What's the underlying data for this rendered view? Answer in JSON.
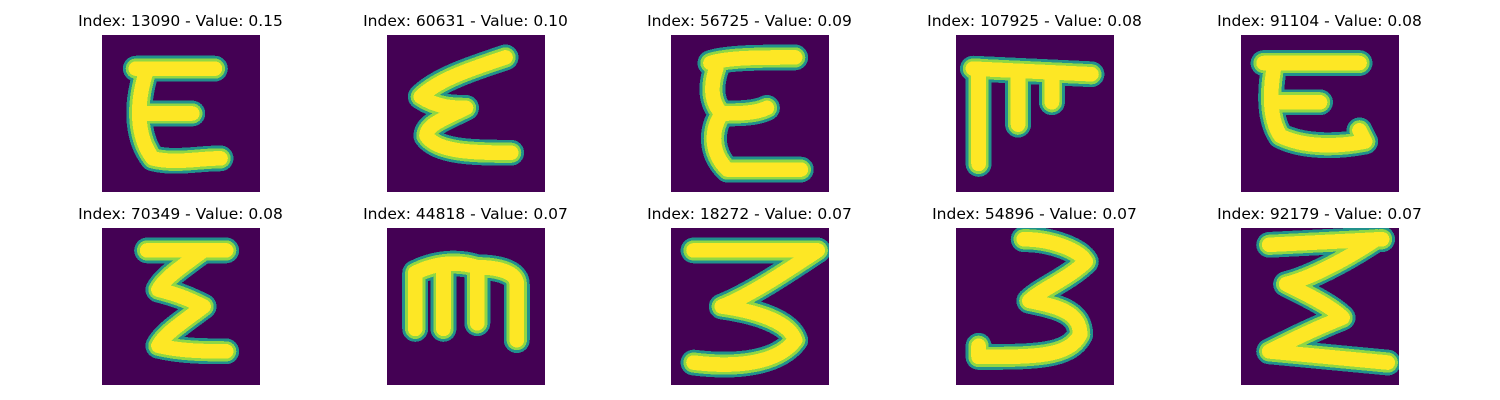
{
  "figure": {
    "colors": {
      "background": "#440154",
      "stroke_edge": "#21918c",
      "stroke_mid": "#8fd744",
      "stroke_core": "#fde725"
    },
    "panels": [
      {
        "title": "Index: 13090 - Value: 0.15",
        "index": 13090,
        "value": 0.15,
        "glyph": "E-like letter"
      },
      {
        "title": "Index: 60631 - Value: 0.10",
        "index": 60631,
        "value": 0.1,
        "glyph": "cursive E"
      },
      {
        "title": "Index: 56725 - Value: 0.09",
        "index": 56725,
        "value": 0.09,
        "glyph": "cursive E"
      },
      {
        "title": "Index: 107925 - Value: 0.08",
        "index": 107925,
        "value": 0.08,
        "glyph": "rotated E"
      },
      {
        "title": "Index: 91104 - Value: 0.08",
        "index": 91104,
        "value": 0.08,
        "glyph": "rounded E"
      },
      {
        "title": "Index: 70349 - Value: 0.08",
        "index": 70349,
        "value": 0.08,
        "glyph": "zigzag E"
      },
      {
        "title": "Index: 44818 - Value: 0.07",
        "index": 44818,
        "value": 0.07,
        "glyph": "sideways E"
      },
      {
        "title": "Index: 18272 - Value: 0.07",
        "index": 18272,
        "value": 0.07,
        "glyph": "numeral 3"
      },
      {
        "title": "Index: 54896 - Value: 0.07",
        "index": 54896,
        "value": 0.07,
        "glyph": "numeral 3"
      },
      {
        "title": "Index: 92179 - Value: 0.07",
        "index": 92179,
        "value": 0.07,
        "glyph": "sigma-like E"
      }
    ]
  }
}
